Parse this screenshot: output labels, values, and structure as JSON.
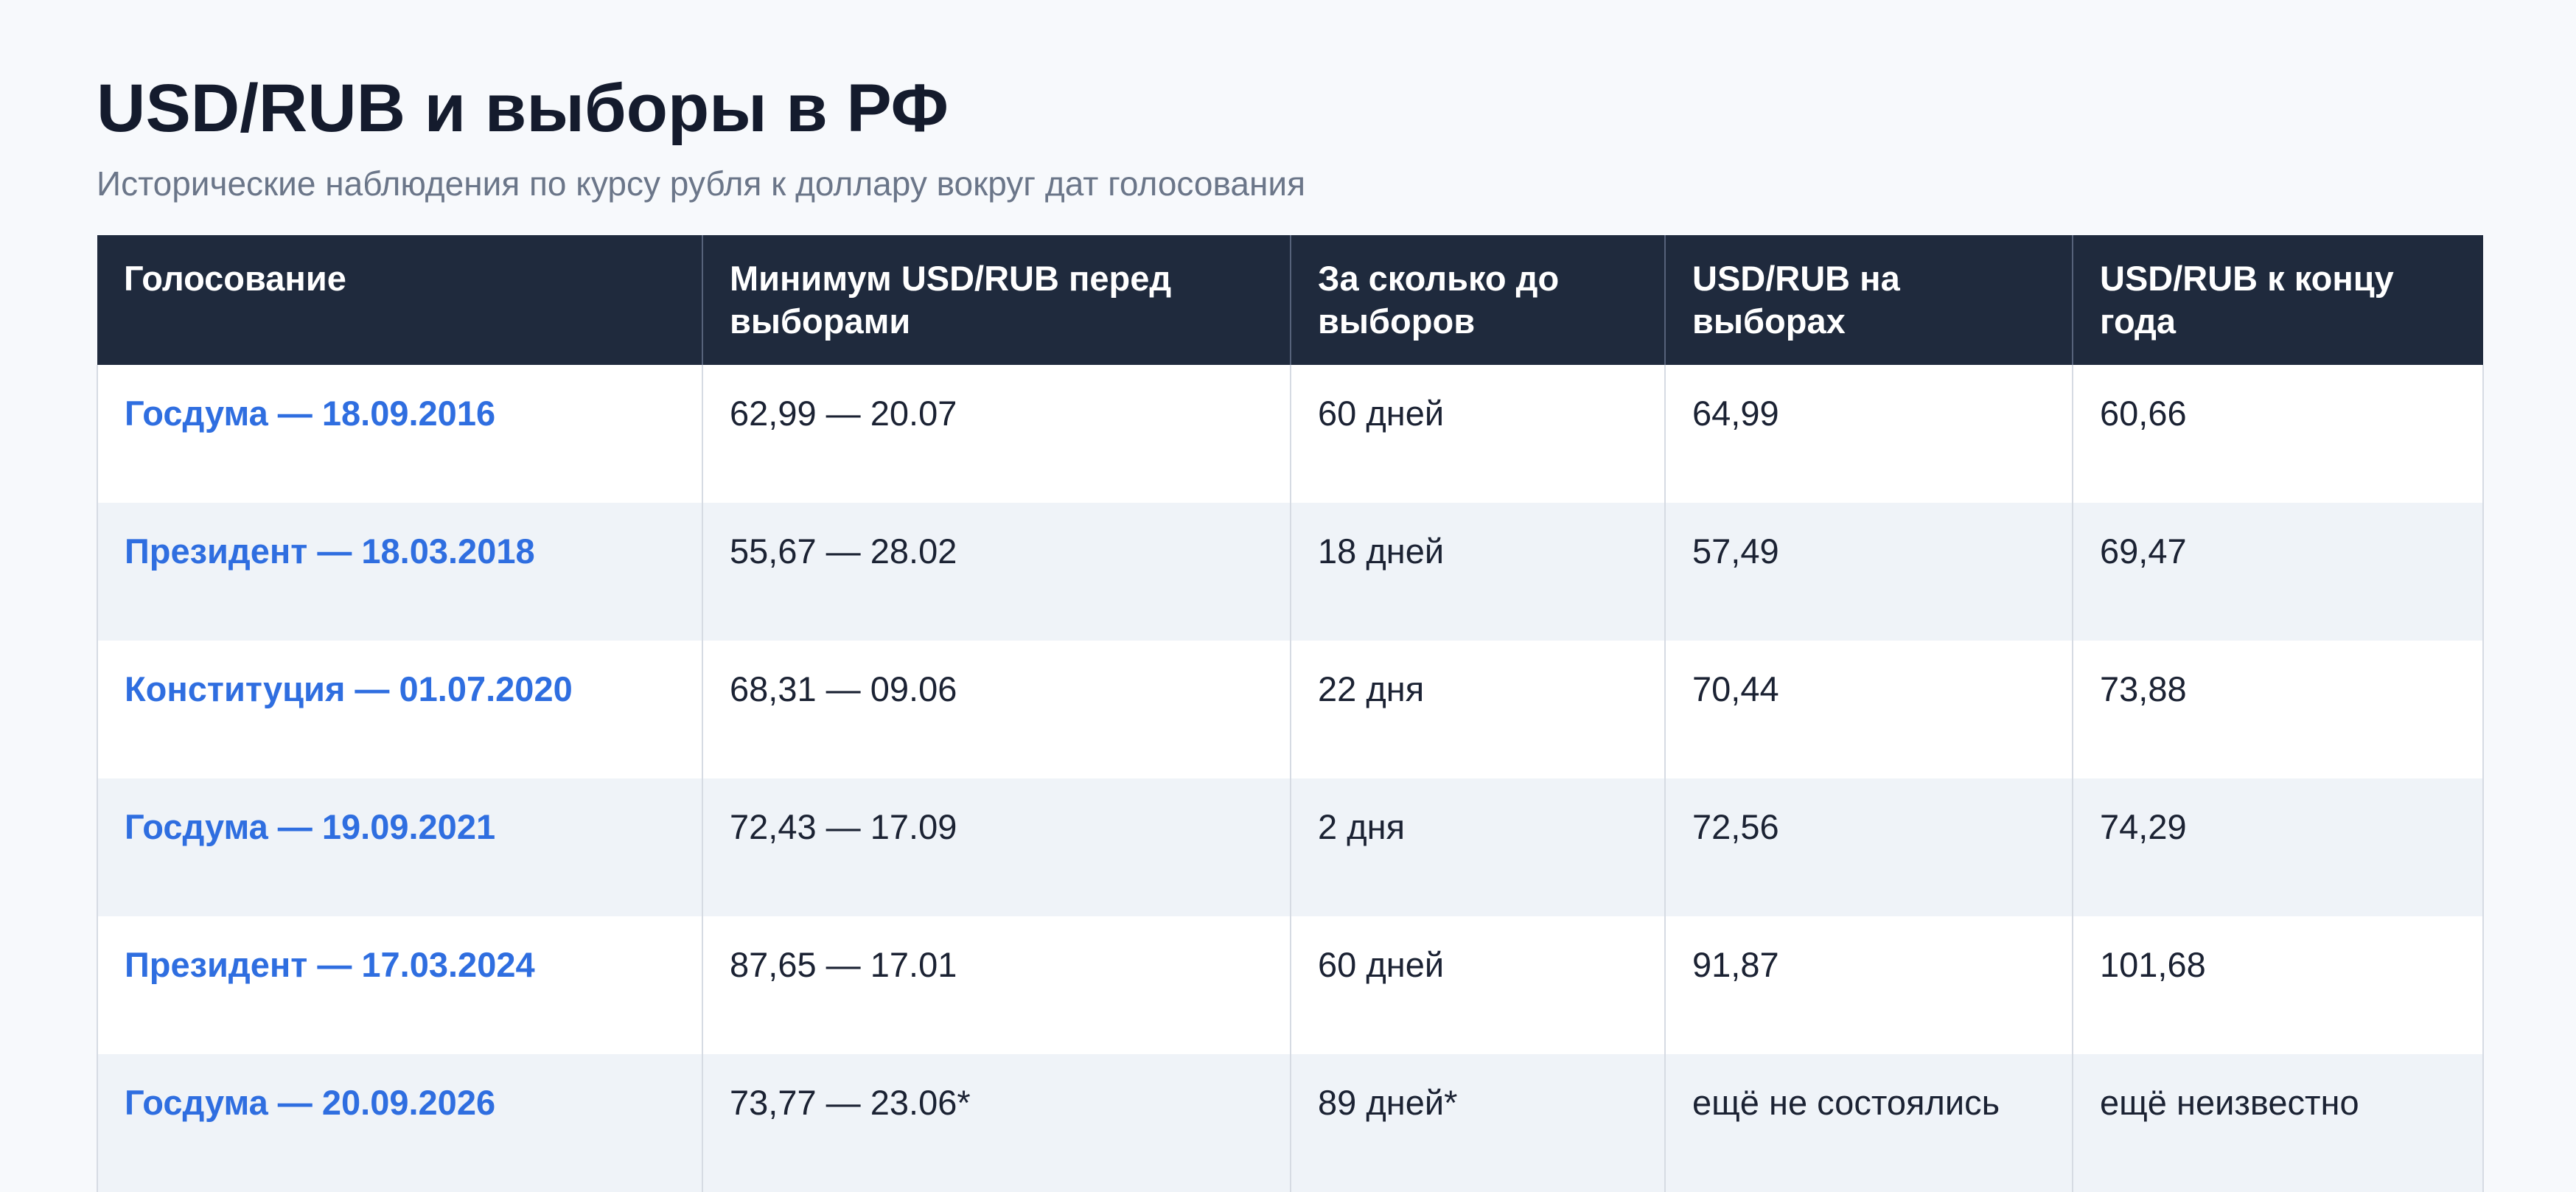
{
  "header": {
    "title": "USD/RUB и выборы в РФ",
    "subtitle": "Исторические наблюдения по курсу рубля к доллару вокруг дат голосования"
  },
  "table": {
    "columns": [
      "Голосование",
      "Минимум USD/RUB перед выборами",
      "За сколько до выборов",
      "USD/RUB на выборах",
      "USD/RUB к концу года"
    ],
    "rows": [
      [
        "Госдума — 18.09.2016",
        "62,99 — 20.07",
        "60 дней",
        "64,99",
        "60,66"
      ],
      [
        "Президент — 18.03.2018",
        "55,67 — 28.02",
        "18 дней",
        "57,49",
        "69,47"
      ],
      [
        "Конституция — 01.07.2020",
        "68,31 — 09.06",
        "22 дня",
        "70,44",
        "73,88"
      ],
      [
        "Госдума — 19.09.2021",
        "72,43 — 17.09",
        "2 дня",
        "72,56",
        "74,29"
      ],
      [
        "Президент — 17.03.2024",
        "87,65 — 17.01",
        "60 дней",
        "91,87",
        "101,68"
      ],
      [
        "Госдума — 20.09.2026",
        "73,77 — 23.06*",
        "89 дней*",
        "ещё не состоялись",
        "ещё неизвестно"
      ]
    ]
  }
}
